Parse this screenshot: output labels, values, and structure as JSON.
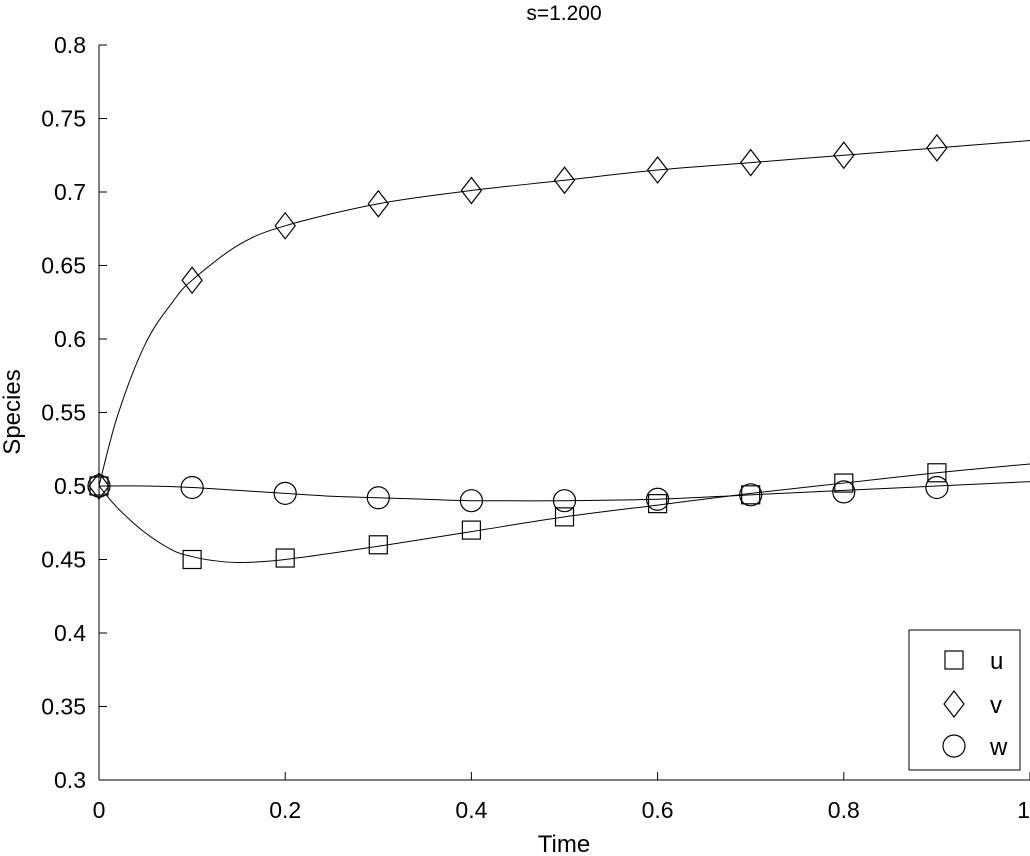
{
  "chart_data": {
    "type": "line",
    "title": "s=1.200",
    "xlabel": "Time",
    "ylabel": "Species",
    "xlim": [
      0,
      1
    ],
    "ylim": [
      0.3,
      0.8
    ],
    "xticks": [
      0,
      0.2,
      0.4,
      0.6,
      0.8,
      1
    ],
    "xtick_labels": [
      "0",
      "0.2",
      "0.4",
      "0.6",
      "0.8",
      "1"
    ],
    "yticks": [
      0.3,
      0.35,
      0.4,
      0.45,
      0.5,
      0.55,
      0.6,
      0.65,
      0.7,
      0.75,
      0.8
    ],
    "ytick_labels": [
      "0.3",
      "0.35",
      "0.4",
      "0.45",
      "0.5",
      "0.55",
      "0.6",
      "0.65",
      "0.7",
      "0.75",
      "0.8"
    ],
    "grid": false,
    "legend_position": "bottom-right",
    "line_color": "#000000",
    "series": [
      {
        "name": "u",
        "marker": "square",
        "markers": {
          "x": [
            0,
            0.1,
            0.2,
            0.3,
            0.4,
            0.5,
            0.6,
            0.7,
            0.8,
            0.9
          ],
          "y": [
            0.5,
            0.45,
            0.451,
            0.46,
            0.47,
            0.479,
            0.488,
            0.494,
            0.502,
            0.509
          ]
        },
        "curve": {
          "x": [
            0,
            0.02,
            0.05,
            0.08,
            0.1,
            0.12,
            0.15,
            0.2,
            0.3,
            0.4,
            0.5,
            0.6,
            0.7,
            0.8,
            0.9,
            1.0
          ],
          "y": [
            0.5,
            0.485,
            0.468,
            0.456,
            0.452,
            0.4495,
            0.448,
            0.45,
            0.459,
            0.469,
            0.479,
            0.487,
            0.495,
            0.502,
            0.509,
            0.515
          ]
        }
      },
      {
        "name": "v",
        "marker": "diamond",
        "markers": {
          "x": [
            0,
            0.1,
            0.2,
            0.3,
            0.4,
            0.5,
            0.6,
            0.7,
            0.8,
            0.9
          ],
          "y": [
            0.5,
            0.64,
            0.677,
            0.692,
            0.701,
            0.708,
            0.715,
            0.72,
            0.725,
            0.73
          ]
        },
        "curve": {
          "x": [
            0,
            0.02,
            0.05,
            0.08,
            0.1,
            0.15,
            0.2,
            0.3,
            0.4,
            0.5,
            0.6,
            0.7,
            0.8,
            0.9,
            1.0
          ],
          "y": [
            0.5,
            0.548,
            0.597,
            0.626,
            0.64,
            0.664,
            0.677,
            0.692,
            0.701,
            0.708,
            0.715,
            0.72,
            0.725,
            0.73,
            0.735
          ]
        }
      },
      {
        "name": "w",
        "marker": "circle",
        "markers": {
          "x": [
            0,
            0.1,
            0.2,
            0.3,
            0.4,
            0.5,
            0.6,
            0.7,
            0.8,
            0.9
          ],
          "y": [
            0.5,
            0.499,
            0.495,
            0.492,
            0.49,
            0.49,
            0.491,
            0.494,
            0.496,
            0.499
          ]
        },
        "curve": {
          "x": [
            0,
            0.05,
            0.1,
            0.15,
            0.2,
            0.25,
            0.3,
            0.35,
            0.4,
            0.5,
            0.6,
            0.7,
            0.8,
            0.9,
            1.0
          ],
          "y": [
            0.5,
            0.5,
            0.499,
            0.497,
            0.495,
            0.493,
            0.492,
            0.491,
            0.49,
            0.49,
            0.491,
            0.494,
            0.497,
            0.5,
            0.503
          ]
        }
      }
    ]
  }
}
